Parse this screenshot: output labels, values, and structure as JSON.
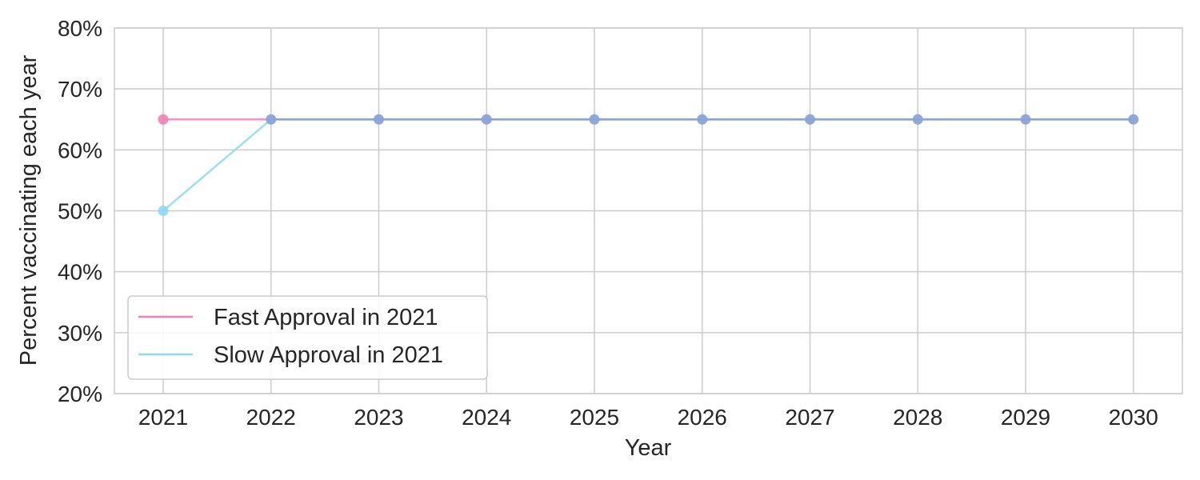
{
  "chart_data": {
    "type": "line",
    "title": "",
    "xlabel": "Year",
    "ylabel": "Percent vaccinating each year",
    "x": [
      2021,
      2022,
      2023,
      2024,
      2025,
      2026,
      2027,
      2028,
      2029,
      2030
    ],
    "x_tick_labels": [
      "2021",
      "2022",
      "2023",
      "2024",
      "2025",
      "2026",
      "2027",
      "2028",
      "2029",
      "2030"
    ],
    "ylim": [
      0.2,
      0.8
    ],
    "y_ticks": [
      0.2,
      0.3,
      0.4,
      0.5,
      0.6,
      0.7,
      0.8
    ],
    "y_tick_labels": [
      "20%",
      "30%",
      "40%",
      "50%",
      "60%",
      "70%",
      "80%"
    ],
    "grid": true,
    "legend_position": "lower-left",
    "series": [
      {
        "name": "Fast Approval in 2021",
        "color": "#ef7fb4",
        "values": [
          0.65,
          0.65,
          0.65,
          0.65,
          0.65,
          0.65,
          0.65,
          0.65,
          0.65,
          0.65
        ]
      },
      {
        "name": "Slow Approval in 2021",
        "color": "#8fd8f0",
        "values": [
          0.5,
          0.65,
          0.65,
          0.65,
          0.65,
          0.65,
          0.65,
          0.65,
          0.65,
          0.65
        ]
      }
    ],
    "overlap_color": "#8ba3d6"
  }
}
